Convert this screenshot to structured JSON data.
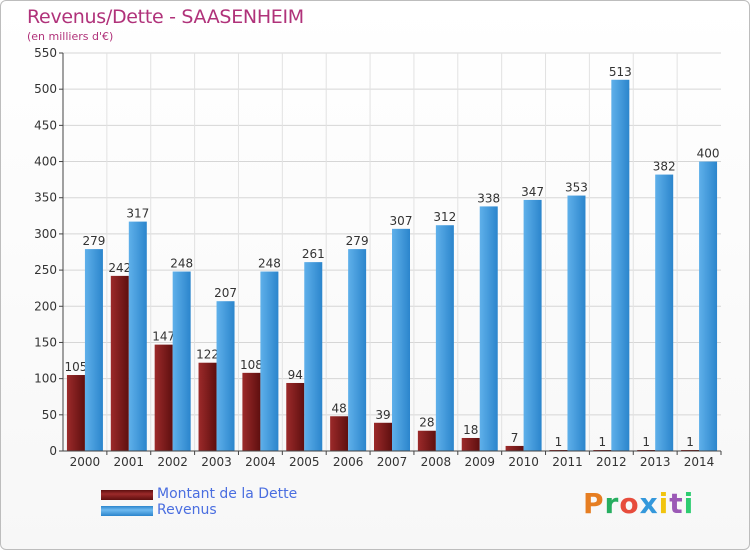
{
  "chart_data": {
    "type": "bar",
    "title": "Revenus/Dette - SAASENHEIM",
    "subtitle": "(en milliers d'€)",
    "categories": [
      "2000",
      "2001",
      "2002",
      "2003",
      "2004",
      "2005",
      "2006",
      "2007",
      "2008",
      "2009",
      "2010",
      "2011",
      "2012",
      "2013",
      "2014"
    ],
    "series": [
      {
        "name": "Montant de la Dette",
        "color": "#7a1c1c",
        "values": [
          105,
          242,
          147,
          122,
          108,
          94,
          48,
          39,
          28,
          18,
          7,
          1,
          1,
          1,
          1
        ]
      },
      {
        "name": "Revenus",
        "color": "#3a96dc",
        "values": [
          279,
          317,
          248,
          207,
          248,
          261,
          279,
          307,
          312,
          338,
          347,
          353,
          513,
          382,
          400
        ]
      }
    ],
    "ylim": [
      0,
      550
    ],
    "yticks": [
      0,
      50,
      100,
      150,
      200,
      250,
      300,
      350,
      400,
      450,
      500,
      550
    ],
    "grid": true,
    "legend_position": "bottom-left"
  },
  "logo": {
    "text": "Proxiti",
    "letters": [
      {
        "ch": "P",
        "color": "#e67e22"
      },
      {
        "ch": "r",
        "color": "#27ae60"
      },
      {
        "ch": "o",
        "color": "#e74c3c"
      },
      {
        "ch": "x",
        "color": "#3498db"
      },
      {
        "ch": "i",
        "color": "#f1c40f"
      },
      {
        "ch": "t",
        "color": "#9b59b6"
      },
      {
        "ch": "i",
        "color": "#2ecc71"
      }
    ]
  }
}
